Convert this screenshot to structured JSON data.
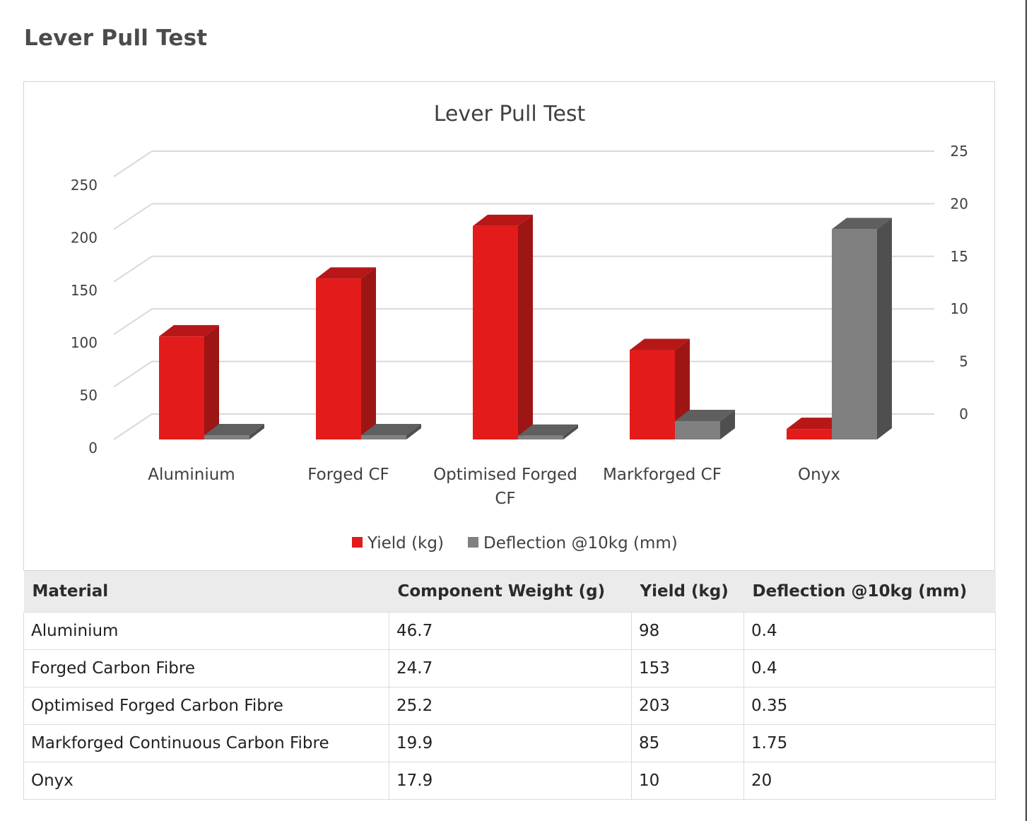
{
  "page": {
    "title": "Lever Pull Test"
  },
  "colors": {
    "yield": "#e31b1b",
    "yield_side": "#9e1515",
    "yield_top": "#b81717",
    "deflection": "#808080",
    "deflection_side": "#4f4f4f",
    "deflection_top": "#5f5f5f",
    "grid": "#d9d9d9",
    "text": "#404040"
  },
  "chart_data": {
    "type": "bar",
    "style": "3d-clustered-column",
    "title": "Lever Pull Test",
    "categories": [
      "Aluminium",
      "Forged CF",
      "Optimised Forged CF",
      "Markforged CF",
      "Onyx"
    ],
    "series": [
      {
        "name": "Yield (kg)",
        "axis": "left",
        "values": [
          98,
          153,
          203,
          85,
          10
        ]
      },
      {
        "name": "Deflection @10kg (mm)",
        "axis": "right",
        "values": [
          0.4,
          0.4,
          0.35,
          1.75,
          20
        ]
      }
    ],
    "y_left": {
      "ticks": [
        0,
        50,
        100,
        150,
        200,
        250
      ],
      "ylim": [
        0,
        250
      ]
    },
    "y_right": {
      "ticks": [
        0,
        5,
        10,
        15,
        20,
        25
      ],
      "ylim": [
        0,
        25
      ]
    },
    "grid": true,
    "legend": "bottom"
  },
  "table": {
    "headers": [
      "Material",
      "Component Weight (g)",
      "Yield (kg)",
      "Deflection @10kg (mm)"
    ],
    "rows": [
      [
        "Aluminium",
        "46.7",
        "98",
        "0.4"
      ],
      [
        "Forged Carbon Fibre",
        "24.7",
        "153",
        "0.4"
      ],
      [
        "Optimised Forged Carbon Fibre",
        "25.2",
        "203",
        "0.35"
      ],
      [
        "Markforged Continuous Carbon Fibre",
        "19.9",
        "85",
        "1.75"
      ],
      [
        "Onyx",
        "17.9",
        "10",
        "20"
      ]
    ]
  }
}
